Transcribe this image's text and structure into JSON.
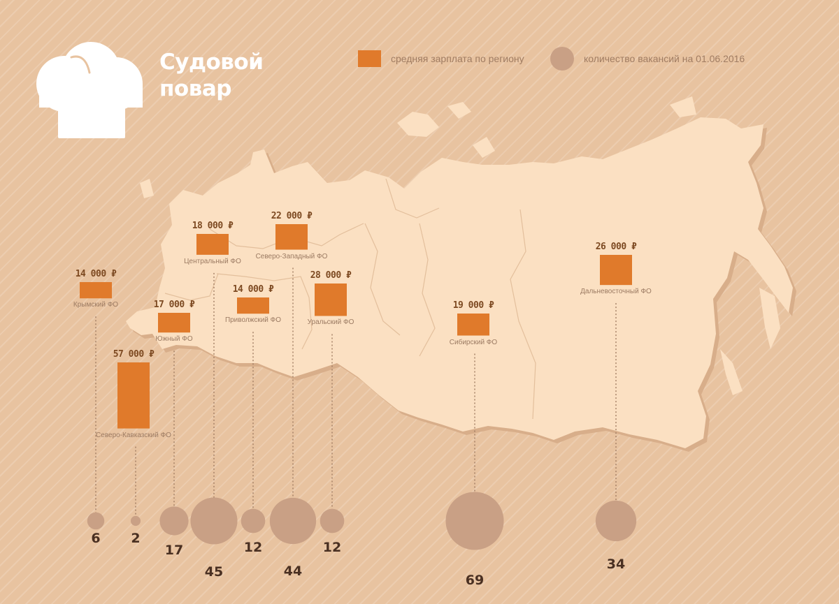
{
  "title": "Судовой\nповар",
  "legend": {
    "salary": "средняя зарплата по региону",
    "vacancies": "количество вакансий на 01.06.2016"
  },
  "colors": {
    "background": "#e8c3a0",
    "map": "#fbe0c2",
    "map_shadow": "#d8ae8a",
    "bar": "#e07a2b",
    "circle": "#c9a085",
    "leader": "#a07c62"
  },
  "icon": "chef-hat-icon",
  "chart_data": {
    "type": "bar",
    "categories": [
      "Крымский ФО",
      "Северо-Кавказский ФО",
      "Южный ФО",
      "Центральный ФО",
      "Приволжский ФО",
      "Северо-Западный ФО",
      "Уральский ФО",
      "Сибирский ФО",
      "Дальневосточный ФО"
    ],
    "series": [
      {
        "name": "средняя зарплата по региону",
        "values": [
          14000,
          57000,
          17000,
          18000,
          14000,
          22000,
          28000,
          19000,
          26000
        ],
        "labels": [
          "14 000 ₽",
          "57 000 ₽",
          "17 000 ₽",
          "18 000 ₽",
          "14 000 ₽",
          "22 000 ₽",
          "28 000 ₽",
          "19 000 ₽",
          "26 000 ₽"
        ]
      },
      {
        "name": "количество вакансий на 01.06.2016",
        "values": [
          6,
          2,
          17,
          45,
          12,
          44,
          12,
          69,
          34
        ],
        "labels": [
          "6",
          "2",
          "17",
          "45",
          "12",
          "44",
          "12",
          "69",
          "34"
        ]
      }
    ]
  }
}
